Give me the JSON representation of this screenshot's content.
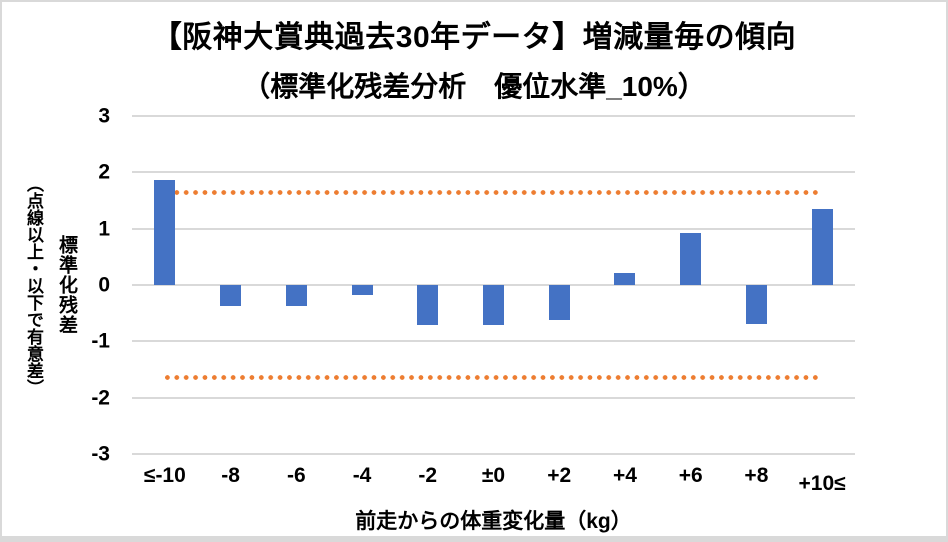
{
  "page": {
    "background": "#ffffff",
    "frame_border_color": "#d9d9d9"
  },
  "chart_data": {
    "type": "bar",
    "title": "【阪神大賞典過去30年データ】増減量毎の傾向",
    "subtitle": "（標準化残差分析　優位水準_10%）",
    "xlabel": "前走からの体重変化量（kg）",
    "ylabel": "標準化残差",
    "ylabel_note": "（点線以上・以下で有意差）",
    "categories": [
      "≤-10",
      "-8",
      "-6",
      "-4",
      "-2",
      "±0",
      "+2",
      "+4",
      "+6",
      "+8",
      "+10≤"
    ],
    "values": [
      1.87,
      -0.37,
      -0.37,
      -0.18,
      -0.71,
      -0.71,
      -0.63,
      0.21,
      0.92,
      -0.7,
      1.35
    ],
    "ylim": [
      -3,
      3
    ],
    "yticks": [
      3,
      2,
      1,
      0,
      -1,
      -2,
      -3
    ],
    "significance_lines": [
      1.645,
      -1.645
    ],
    "grid": true,
    "legend": "none",
    "bar_color": "#4472C4",
    "line_color": "#ED7D31",
    "gridline_color": "#D9D9D9",
    "text_color": "#000000"
  }
}
